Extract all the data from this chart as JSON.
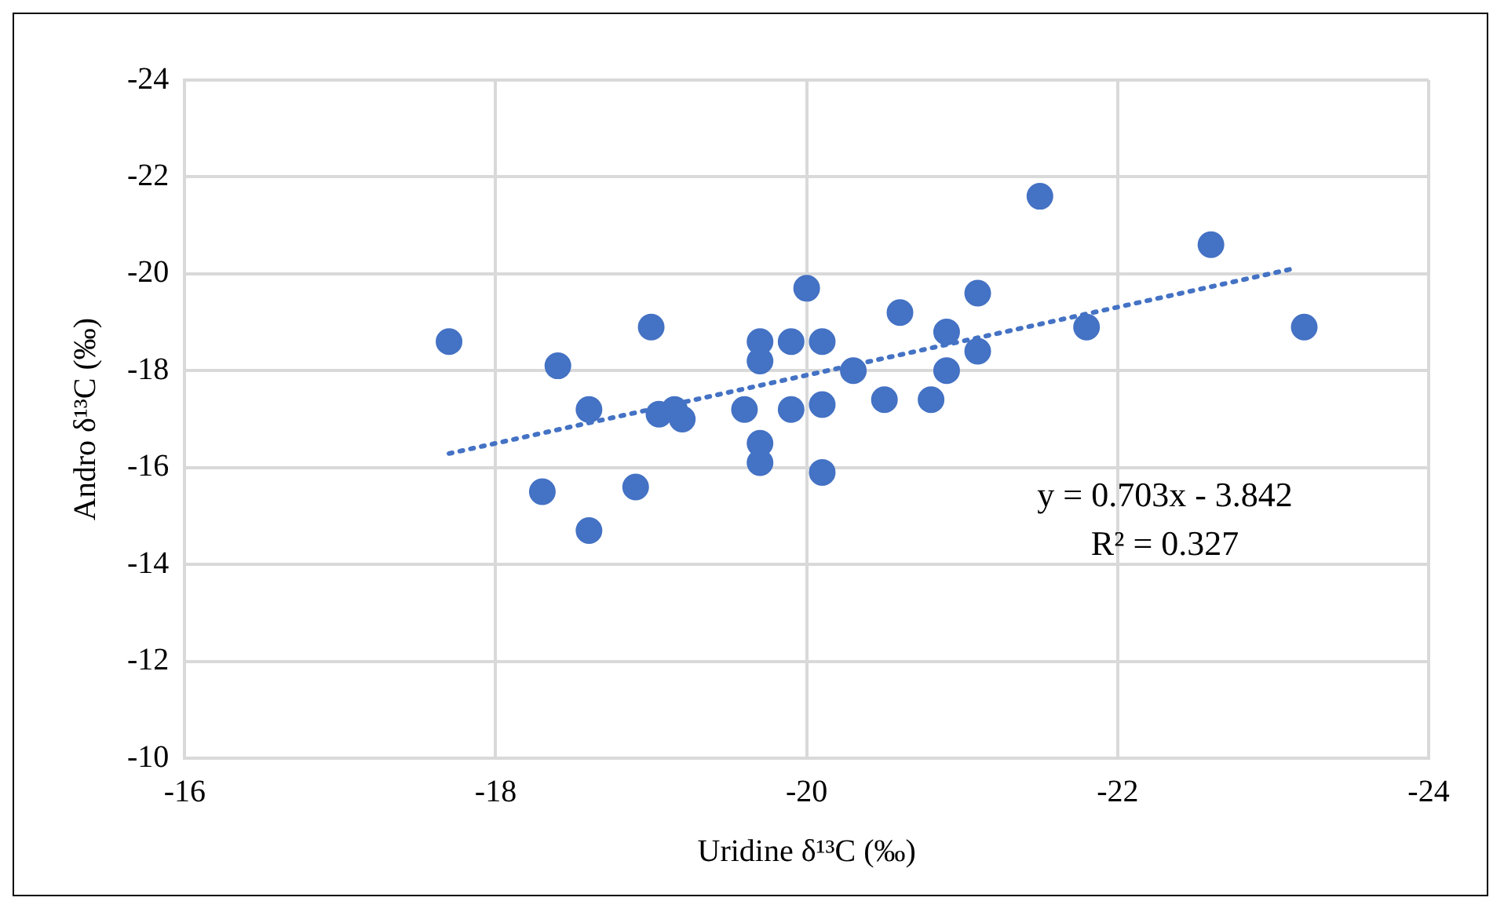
{
  "chart_data": {
    "type": "scatter",
    "xlabel": "Uridine δ¹³C (‰)",
    "ylabel": "Andro δ¹³C (‰)",
    "xlim": [
      -16,
      -24
    ],
    "xticks": [
      -16,
      -18,
      -20,
      -22,
      -24
    ],
    "ylim": [
      -10,
      -24
    ],
    "yticks": [
      -10,
      -12,
      -14,
      -16,
      -18,
      -20,
      -22,
      -24
    ],
    "grid": true,
    "legend": false,
    "marker": "circle",
    "annotations": [
      "y = 0.703x - 3.842",
      "R² = 0.327"
    ],
    "series": [
      {
        "color": "#4472c4",
        "x": [
          -17.7,
          -18.4,
          -18.6,
          -18.3,
          -18.6,
          -18.9,
          -19.0,
          -19.05,
          -19.15,
          -19.2,
          -19.6,
          -19.7,
          -19.7,
          -19.7,
          -19.7,
          -19.9,
          -19.9,
          -20.0,
          -20.1,
          -20.1,
          -20.1,
          -20.3,
          -20.5,
          -20.6,
          -20.8,
          -20.9,
          -20.9,
          -21.1,
          -21.1,
          -21.5,
          -21.8,
          -22.6,
          -23.2
        ],
        "values": [
          -18.6,
          -18.1,
          -17.2,
          -15.5,
          -14.7,
          -15.6,
          -18.9,
          -17.1,
          -17.2,
          -17.0,
          -17.2,
          -18.6,
          -18.2,
          -16.5,
          -16.1,
          -18.6,
          -17.2,
          -19.7,
          -15.9,
          -17.3,
          -18.6,
          -18.0,
          -17.4,
          -19.2,
          -17.4,
          -18.8,
          -18.0,
          -19.6,
          -18.4,
          -21.6,
          -18.9,
          -20.6,
          -18.9
        ]
      },
      {
        "type": "line",
        "color": "#4472c4",
        "line_style": "dotted",
        "marker": "none",
        "x": [
          -17.7,
          -23.15
        ],
        "values": [
          -16.29,
          -20.12
        ]
      }
    ]
  }
}
